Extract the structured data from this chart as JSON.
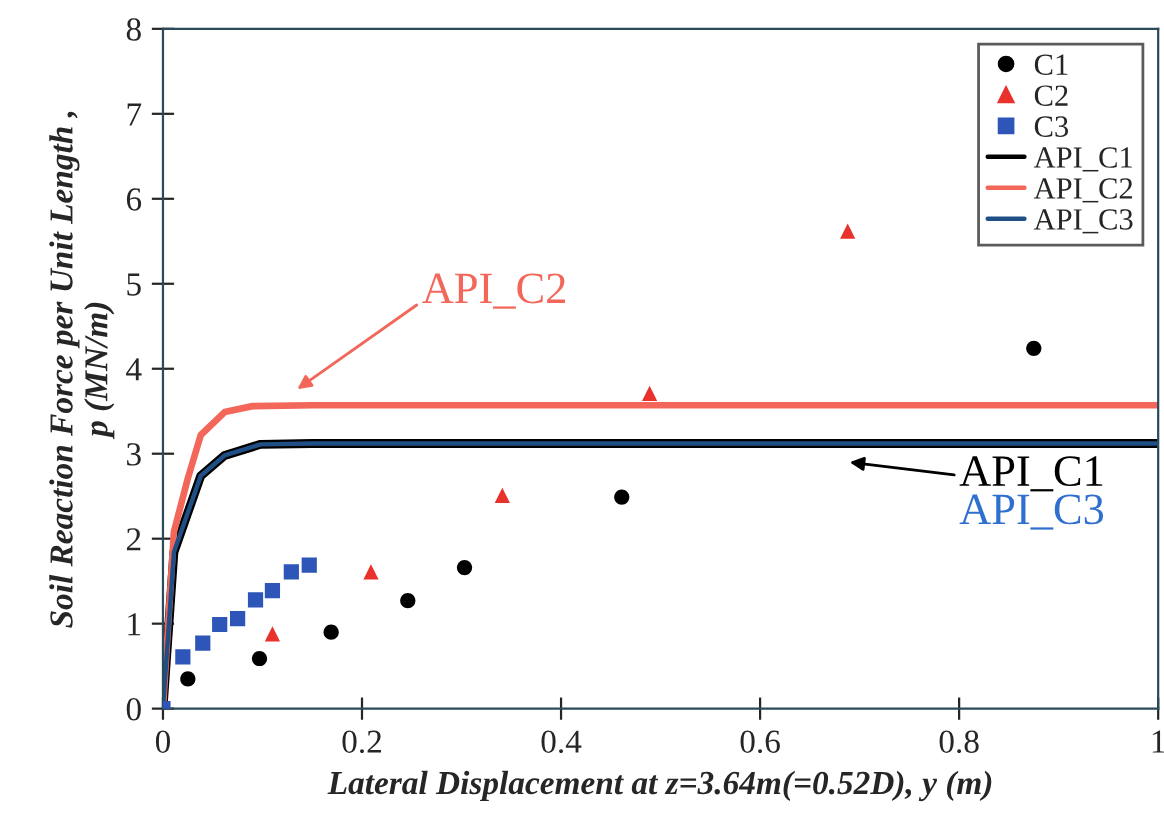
{
  "chart_data": {
    "type": "scatter",
    "xlabel": "Lateral Displacement at z=3.64m(=0.52D), y (m)",
    "ylabel": "Soil Reaction Force per Unit Length ,\np (MN/m)",
    "xlim": [
      0,
      1
    ],
    "xticks": [
      0,
      0.2,
      0.4,
      0.6,
      0.8,
      1
    ],
    "ylim": [
      0,
      8
    ],
    "yticks": [
      0,
      1,
      2,
      3,
      4,
      5,
      6,
      7,
      8
    ],
    "grid": false,
    "legend": "top right",
    "series": [
      {
        "name": "C1",
        "marker": "circle",
        "color": "#000000",
        "x": [
          0.025,
          0.097,
          0.169,
          0.246,
          0.303,
          0.461,
          0.875
        ],
        "values": [
          0.35,
          0.59,
          0.9,
          1.27,
          1.66,
          2.49,
          4.24
        ]
      },
      {
        "name": "C2",
        "marker": "triangle",
        "color": "#e8322b",
        "x": [
          0.11,
          0.209,
          0.341,
          0.489,
          0.688
        ],
        "values": [
          0.88,
          1.61,
          2.51,
          3.71,
          5.62
        ]
      },
      {
        "name": "C3",
        "marker": "square",
        "color": "#2e55b8",
        "x": [
          0,
          0.02,
          0.04,
          0.057,
          0.075,
          0.093,
          0.11,
          0.129,
          0.147
        ],
        "values": [
          0,
          0.61,
          0.77,
          0.99,
          1.06,
          1.28,
          1.39,
          1.61,
          1.69
        ]
      },
      {
        "name": "API_C1",
        "type": "line",
        "marker": "none",
        "color": "#000000",
        "x": [
          0,
          0.011,
          0.038,
          0.062,
          0.098,
          0.15,
          1
        ],
        "values": [
          0,
          1.84,
          2.74,
          2.98,
          3.11,
          3.12,
          3.12
        ]
      },
      {
        "name": "API_C2",
        "type": "line",
        "marker": "none",
        "color": "#f2675a",
        "x": [
          0,
          0.011,
          0.025,
          0.038,
          0.062,
          0.09,
          0.15,
          1
        ],
        "values": [
          0,
          2.08,
          2.71,
          3.22,
          3.49,
          3.56,
          3.57,
          3.57
        ]
      },
      {
        "name": "API_C3",
        "type": "line",
        "marker": "none",
        "color": "#1f4f85",
        "x": [
          0,
          0.011,
          0.038,
          0.062,
          0.098,
          0.15,
          1
        ],
        "values": [
          0,
          1.84,
          2.74,
          2.98,
          3.11,
          3.12,
          3.12
        ]
      }
    ],
    "annotations": [
      "API_C2",
      "API_C1",
      "API_C3"
    ]
  }
}
